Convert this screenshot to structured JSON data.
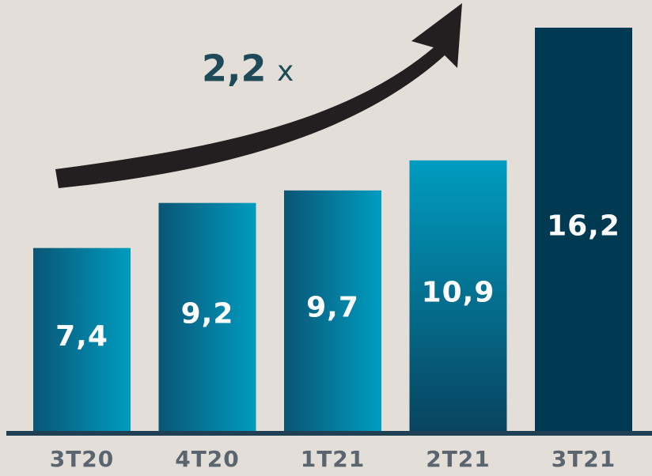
{
  "chart_data": {
    "type": "bar",
    "categories": [
      "3T20",
      "4T20",
      "1T21",
      "2T21",
      "3T21"
    ],
    "values": [
      7.4,
      9.2,
      9.7,
      10.9,
      16.2
    ],
    "value_labels": [
      "7,4",
      "9,2",
      "9,7",
      "10,9",
      "16,2"
    ],
    "annotation": [
      "2,2",
      "x"
    ]
  }
}
